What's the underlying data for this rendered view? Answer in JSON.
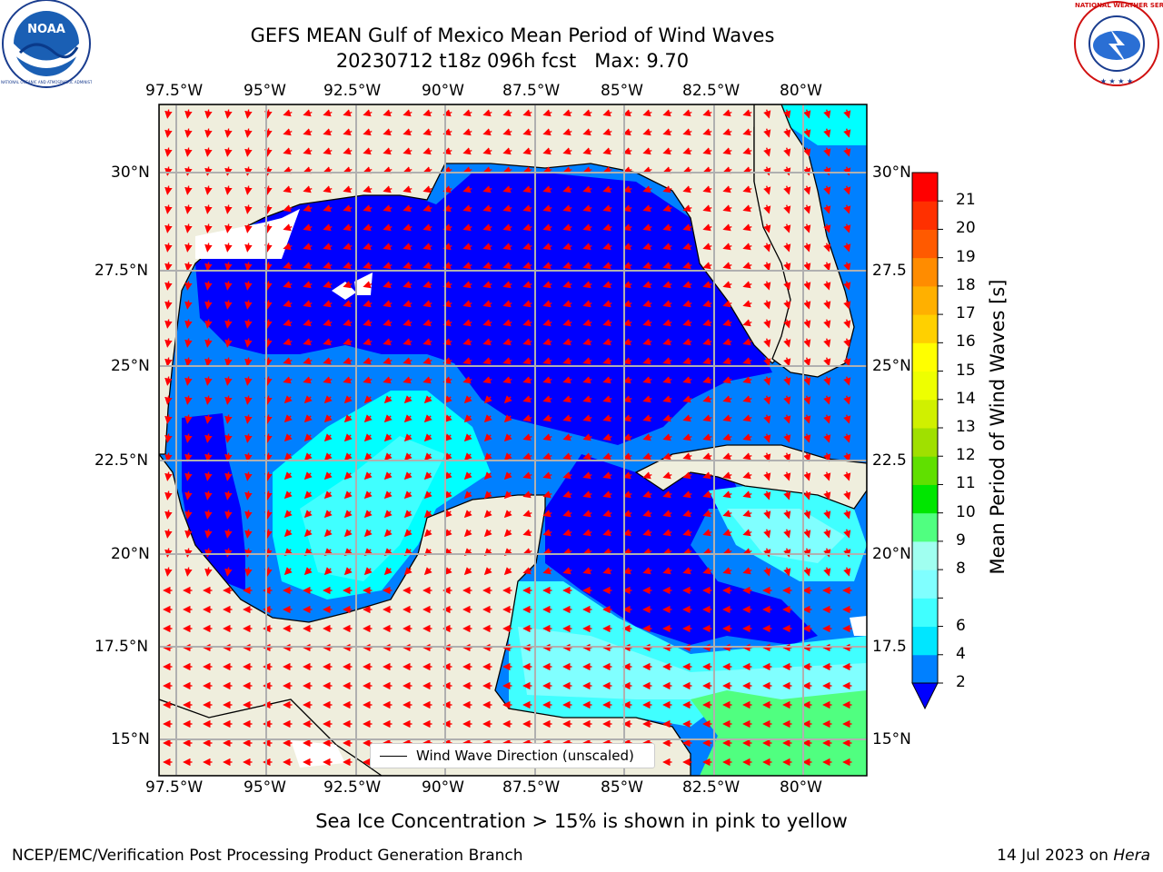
{
  "header": {
    "title_line1": "GEFS MEAN Gulf of Mexico Mean Period of Wind Waves",
    "title_line2": "20230712 t18z 096h fcst   Max: 9.70"
  },
  "logos": {
    "noaa_text": "NOAA",
    "noaa_ring": "NATIONAL OCEANIC AND ATMOSPHERIC ADMINISTRATION · U.S. DEPARTMENT OF COMMERCE",
    "nws_ring": "NATIONAL WEATHER SERVICE"
  },
  "axes": {
    "lon_ticks": [
      "97.5°W",
      "95°W",
      "92.5°W",
      "90°W",
      "87.5°W",
      "85°W",
      "82.5°W",
      "80°W"
    ],
    "lat_ticks_left": [
      "30°N",
      "27.5°N",
      "25°N",
      "22.5°N",
      "20°N",
      "17.5°N",
      "15°N"
    ],
    "lat_ticks_right": [
      "30°N",
      "27.5",
      "25°N",
      "22.5",
      "20°N",
      "17.5",
      "15°N"
    ]
  },
  "legend": {
    "label": "Wind Wave Direction (unscaled)"
  },
  "colorbar": {
    "label": "Mean Period of Wind Waves [s]",
    "levels": [
      "2",
      "4",
      "6",
      "7",
      "8",
      "9",
      "10",
      "11",
      "12",
      "13",
      "14",
      "15",
      "16",
      "17",
      "18",
      "19",
      "20",
      "21"
    ],
    "shown_labels": [
      "21",
      "20",
      "19",
      "18",
      "17",
      "16",
      "15",
      "14",
      "13",
      "12",
      "11",
      "10",
      "9",
      "8",
      "6",
      "4",
      "2"
    ],
    "colors": [
      "#0080ff",
      "#00e6ff",
      "#40ffff",
      "#80ffff",
      "#a0fff0",
      "#50ff80",
      "#00e600",
      "#60e000",
      "#a0e000",
      "#d0f000",
      "#eeff00",
      "#ffff00",
      "#ffd000",
      "#ffb000",
      "#ff8c00",
      "#ff5a00",
      "#ff3000",
      "#ff0000"
    ],
    "extend_color": "#0000ff"
  },
  "note": "Sea Ice Concentration > 15% is shown in pink to yellow",
  "footer": {
    "left": "NCEP/EMC/Verification Post Processing Product Generation Branch",
    "date": "14 Jul 2023 on",
    "machine": "Hera"
  },
  "chart_data": {
    "type": "heatmap",
    "variable": "Mean Period of Wind Waves",
    "units": "s",
    "max": 9.7,
    "lon_range": [
      -98.0,
      -78.3
    ],
    "lat_range": [
      14.1,
      31.8
    ],
    "contour_levels": [
      2,
      4,
      6,
      7,
      8,
      9,
      10,
      11,
      12,
      13,
      14,
      15,
      16,
      17,
      18,
      19,
      20,
      21
    ],
    "regions": [
      {
        "area": "northern and central Gulf",
        "period_s": "<2"
      },
      {
        "area": "western Gulf coast",
        "period_s": "<2"
      },
      {
        "area": "southwest Gulf / Bay of Campeche",
        "period_s": "2-6"
      },
      {
        "area": "Yucatan Channel and Cuba north coast",
        "period_s": "<2"
      },
      {
        "area": "western Caribbean",
        "period_s": "4-8"
      },
      {
        "area": "southeast Caribbean corner",
        "period_s": "9-10"
      },
      {
        "area": "Florida Atlantic coast",
        "period_s": "2-4"
      }
    ],
    "vector_field": "Wind Wave Direction (unscaled)",
    "grid": true
  }
}
